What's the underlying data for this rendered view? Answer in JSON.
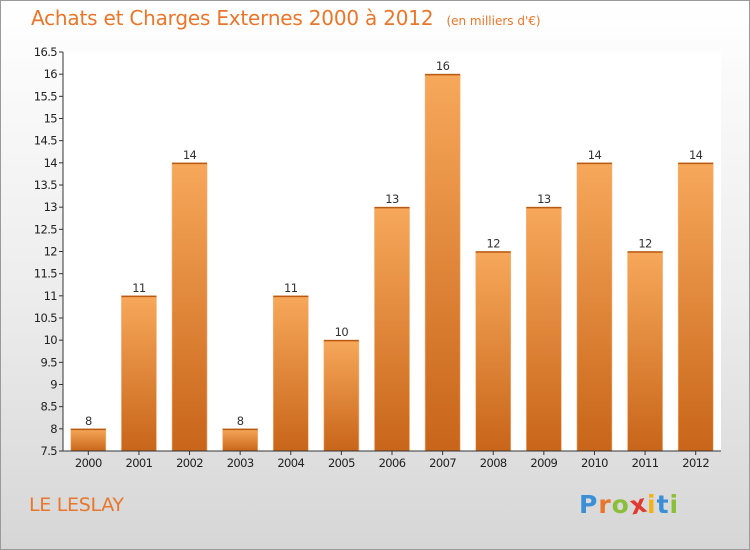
{
  "header": {
    "title": "Achats et Charges Externes 2000 à 2012",
    "unit": "(en milliers d'€)"
  },
  "place_name": "LE LESLAY",
  "logo": {
    "letters": [
      "P",
      "r",
      "o",
      "x",
      "i",
      "t",
      "i"
    ],
    "colors": [
      "#3b8fd6",
      "#e8762b",
      "#8bbf3a",
      "#e03b2f",
      "#f2b318",
      "#3b8fd6",
      "#8bbf3a"
    ]
  },
  "colors": {
    "accent": "#e8762b",
    "bar_top": "#f7a85a",
    "bar_bottom": "#c8651a",
    "axis": "#333333",
    "grid_bg": "#ffffff"
  },
  "chart_data": {
    "type": "bar",
    "categories": [
      "2000",
      "2001",
      "2002",
      "2003",
      "2004",
      "2005",
      "2006",
      "2007",
      "2008",
      "2009",
      "2010",
      "2011",
      "2012"
    ],
    "values": [
      8,
      11,
      14,
      8,
      11,
      10,
      13,
      16,
      12,
      13,
      14,
      12,
      14
    ],
    "data_labels": [
      "8",
      "11",
      "14",
      "8",
      "11",
      "10",
      "13",
      "16",
      "12",
      "13",
      "14",
      "12",
      "14"
    ],
    "yticks": [
      "7.5",
      "8",
      "8.5",
      "9",
      "9.5",
      "10",
      "10.5",
      "11",
      "11.5",
      "12",
      "12.5",
      "13",
      "13.5",
      "14",
      "14.5",
      "15",
      "15.5",
      "16",
      "16.5"
    ],
    "ylim": [
      7.5,
      16.5
    ],
    "grid": false,
    "legend": "none"
  }
}
